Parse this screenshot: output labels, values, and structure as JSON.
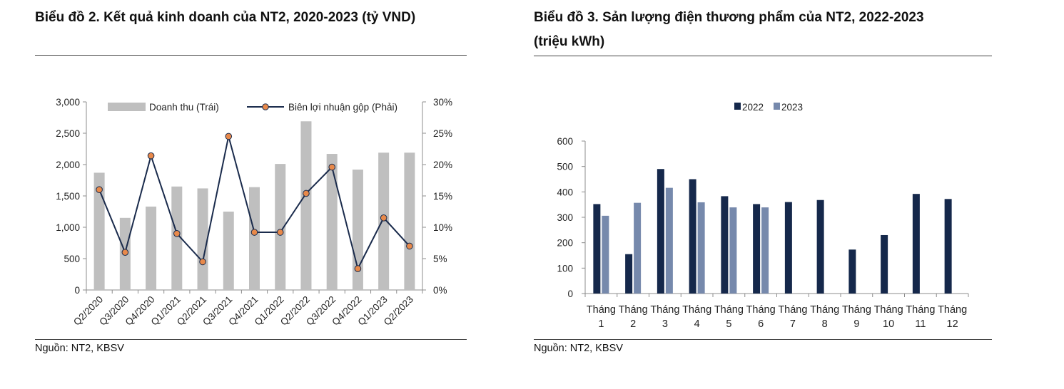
{
  "chart_data": [
    {
      "type": "bar",
      "title": "Biểu đồ 2. Kết quả kinh doanh của NT2, 2020-2023 (tỷ VND)",
      "source": "Nguồn: NT2, KBSV",
      "categories": [
        "Q2/2020",
        "Q3/2020",
        "Q4/2020",
        "Q1/2021",
        "Q2/2021",
        "Q3/2021",
        "Q4/2021",
        "Q1/2022",
        "Q2/2022",
        "Q3/2022",
        "Q4/2022",
        "Q1/2023",
        "Q2/2023"
      ],
      "series": [
        {
          "name": "Doanh thu (Trái)",
          "type": "bar",
          "axis": "left",
          "color": "#bfbfbf",
          "values": [
            1870,
            1150,
            1330,
            1650,
            1620,
            1250,
            1640,
            2010,
            2690,
            2170,
            1920,
            2190,
            2190
          ]
        },
        {
          "name": "Biên lợi nhuận gộp (Phải)",
          "type": "line",
          "axis": "right",
          "color": "#1a2b4c",
          "marker_color": "#e8894a",
          "values": [
            16.0,
            6.0,
            21.4,
            9.0,
            4.5,
            24.5,
            9.2,
            9.2,
            15.4,
            19.6,
            3.4,
            11.5,
            7.0
          ]
        }
      ],
      "y_left": {
        "min": 0,
        "max": 3000,
        "step": 500,
        "ticks": [
          "0",
          "500",
          "1,000",
          "1,500",
          "2,000",
          "2,500",
          "3,000"
        ]
      },
      "y_right": {
        "min": 0,
        "max": 30,
        "step": 5,
        "ticks": [
          "0%",
          "5%",
          "10%",
          "15%",
          "20%",
          "25%",
          "30%"
        ]
      },
      "legend_placement": "top",
      "grid": false
    },
    {
      "type": "bar",
      "title_line1": "Biểu đồ 3. Sản lượng điện thương phẩm của NT2, 2022-2023",
      "title_line2": "(triệu kWh)",
      "source": "Nguồn: NT2, KBSV",
      "categories": [
        [
          "Tháng",
          "1"
        ],
        [
          "Tháng",
          "2"
        ],
        [
          "Tháng",
          "3"
        ],
        [
          "Tháng",
          "4"
        ],
        [
          "Tháng",
          "5"
        ],
        [
          "Tháng",
          "6"
        ],
        [
          "Tháng",
          "7"
        ],
        [
          "Tháng",
          "8"
        ],
        [
          "Tháng",
          "9"
        ],
        [
          "Tháng",
          "10"
        ],
        [
          "Tháng",
          "11"
        ],
        [
          "Tháng",
          "12"
        ]
      ],
      "series": [
        {
          "name": "2022",
          "color": "#15284b",
          "values": [
            352,
            155,
            490,
            450,
            383,
            352,
            360,
            368,
            173,
            230,
            392,
            372
          ]
        },
        {
          "name": "2023",
          "color": "#7689ac",
          "values": [
            306,
            357,
            416,
            359,
            339,
            339,
            null,
            null,
            null,
            null,
            null,
            null
          ]
        }
      ],
      "y": {
        "min": 0,
        "max": 600,
        "step": 100,
        "ticks": [
          "0",
          "100",
          "200",
          "300",
          "400",
          "500",
          "600"
        ]
      },
      "legend_placement": "top",
      "grid": false
    }
  ]
}
